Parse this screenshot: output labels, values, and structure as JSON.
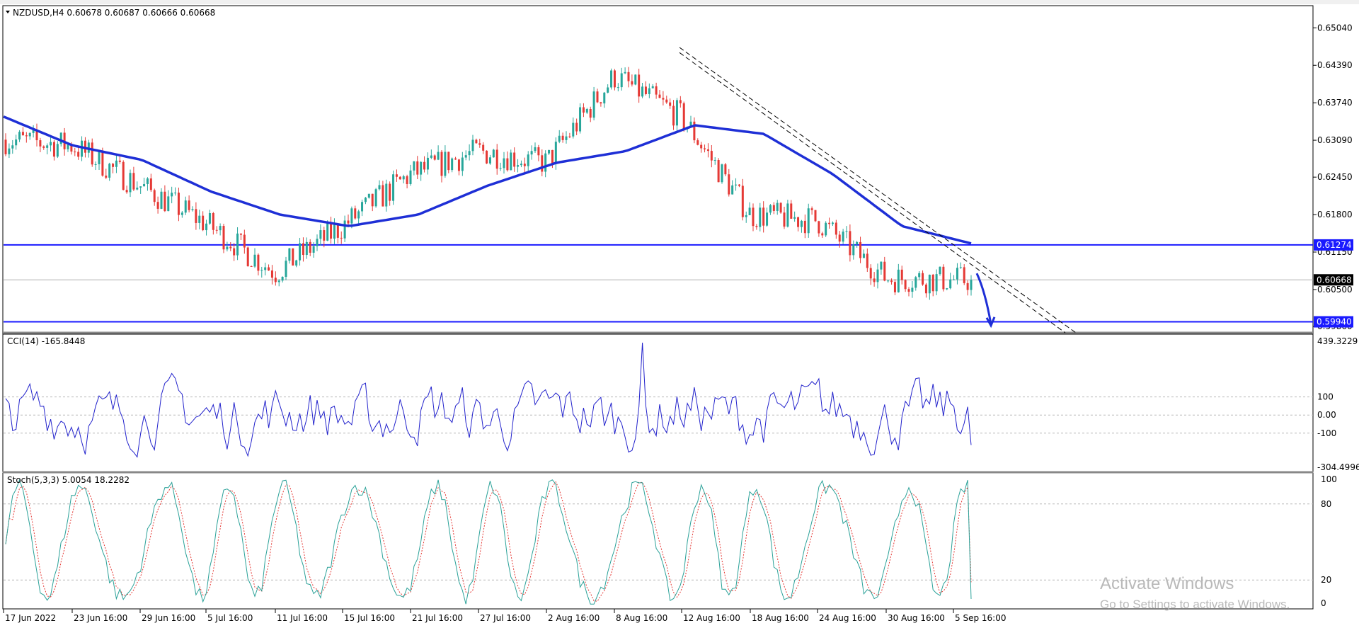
{
  "header": {
    "symbol_line": "NZDUSD,H4  0.60678 0.60687 0.60666 0.60668"
  },
  "indicators": {
    "cci_label": "CCI(14) -165.8448",
    "stoch_label": "Stoch(5,3,3) 5.0054 18.2282"
  },
  "price_axis": {
    "ticks": [
      "0.65040",
      "0.64390",
      "0.63740",
      "0.63090",
      "0.62450",
      "0.61800",
      "0.61150",
      "0.60500",
      "0.59860"
    ],
    "tags": [
      {
        "text": "0.61274",
        "value": 0.61274,
        "style": "blue"
      },
      {
        "text": "0.60668",
        "value": 0.60668,
        "style": "black"
      },
      {
        "text": "0.59940",
        "value": 0.5994,
        "style": "blue"
      }
    ]
  },
  "cci_axis": {
    "max_label": "439.3229",
    "min_label": "-304.4996",
    "levels": [
      "100",
      "0.00",
      "-100"
    ]
  },
  "stoch_axis": {
    "levels": [
      "100",
      "80",
      "20",
      "0"
    ]
  },
  "time_axis": {
    "labels": [
      "17 Jun 2022",
      "23 Jun 16:00",
      "29 Jun 16:00",
      "5 Jul 16:00",
      "11 Jul 16:00",
      "15 Jul 16:00",
      "21 Jul 16:00",
      "27 Jul 16:00",
      "2 Aug 16:00",
      "8 Aug 16:00",
      "12 Aug 16:00",
      "18 Aug 16:00",
      "24 Aug 16:00",
      "30 Aug 16:00",
      "5 Sep 16:00"
    ]
  },
  "watermark": {
    "line1": "Activate Windows",
    "line2": "Go to Settings to activate Windows."
  },
  "colors": {
    "bull": "#26a69a",
    "bear": "#e53935",
    "ma": "#1e2fd6",
    "level": "#1a1aff",
    "cci": "#2222cc",
    "stoch_main": "#2aa198",
    "stoch_signal": "#e53935"
  },
  "chart_data": {
    "type": "candlestick",
    "symbol": "NZDUSD",
    "timeframe": "H4",
    "ylim": [
      0.5975,
      0.654
    ],
    "price_path": [
      [
        "17 Jun 2022",
        0.631
      ],
      [
        "23 Jun 16:00",
        0.63
      ],
      [
        "29 Jun 16:00",
        0.623
      ],
      [
        "5 Jul 16:00",
        0.6165
      ],
      [
        "11 Jul 16:00",
        0.608
      ],
      [
        "15 Jul 16:00",
        0.616
      ],
      [
        "21 Jul 16:00",
        0.625
      ],
      [
        "27 Jul 16:00",
        0.629
      ],
      [
        "2 Aug 16:00",
        0.627
      ],
      [
        "8 Aug 16:00",
        0.642
      ],
      [
        "12 Aug 16:00",
        0.635
      ],
      [
        "18 Aug 16:00",
        0.618
      ],
      [
        "24 Aug 16:00",
        0.617
      ],
      [
        "30 Aug 16:00",
        0.607
      ],
      [
        "5 Sep 16:00",
        0.60668
      ]
    ],
    "moving_average": [
      0.635,
      0.63,
      0.6275,
      0.622,
      0.618,
      0.616,
      0.618,
      0.623,
      0.627,
      0.629,
      0.6335,
      0.632,
      0.625,
      0.616,
      0.613
    ],
    "horizontal_levels": [
      0.61274,
      0.5994
    ],
    "current_price": 0.60668,
    "cci": {
      "name": "CCI(14)",
      "last": -165.8448,
      "ylim": [
        -304.4996,
        439.3229
      ],
      "levels": [
        100,
        0,
        -100
      ]
    },
    "stochastic": {
      "name": "Stoch(5,3,3)",
      "main": 5.0054,
      "signal": 18.2282,
      "ylim": [
        0,
        100
      ],
      "levels": [
        80,
        20
      ]
    }
  }
}
